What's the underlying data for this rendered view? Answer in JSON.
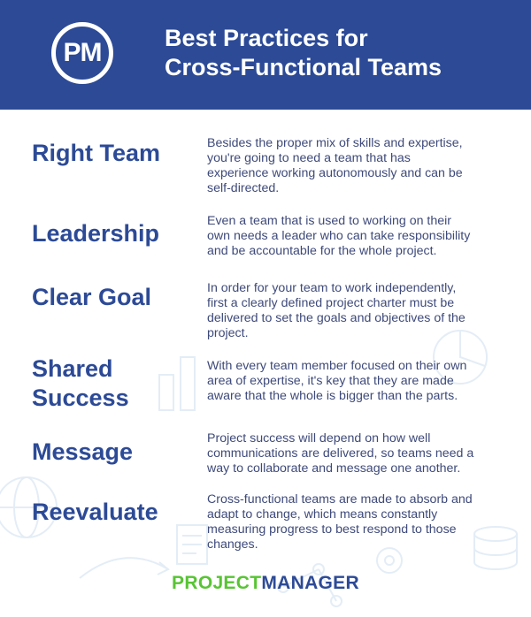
{
  "header": {
    "logo_text": "PM",
    "title_line1": "Best Practices for",
    "title_line2": "Cross-Functional Teams"
  },
  "practices": [
    {
      "heading": [
        "Right Team"
      ],
      "description": [
        "Besides the proper mix of skills and expertise,",
        "you're going to need a team that has",
        "experience working autonomously and can be",
        "self-directed."
      ]
    },
    {
      "heading": [
        "Leadership"
      ],
      "description": [
        "Even a team that is used to working on their",
        "own needs a leader who can take responsibility",
        "and be accountable for the whole project."
      ]
    },
    {
      "heading": [
        "Clear Goal"
      ],
      "description": [
        "In order for your team to work independently,",
        "first a clearly defined project charter must be",
        "delivered to set the goals and objectives of the",
        "project."
      ]
    },
    {
      "heading": [
        "Shared",
        "Success"
      ],
      "description": [
        "With every team member focused on their own",
        "area of expertise, it's key that they are made",
        "aware that the whole is bigger than the parts."
      ]
    },
    {
      "heading": [
        "Message"
      ],
      "description": [
        "Project success will depend on how well",
        "communications are delivered, so teams need a",
        "way to collaborate and message one another."
      ]
    },
    {
      "heading": [
        "Reevaluate"
      ],
      "description": [
        "Cross-functional teams are made to absorb and",
        "adapt to change, which means constantly",
        "measuring progress to best respond to those",
        "changes."
      ]
    }
  ],
  "brand": {
    "part1": "PROJECT",
    "part2": "MANAGER"
  },
  "colors": {
    "header_bg": "#2c4a96",
    "heading": "#2c4a96",
    "text": "#3e4a7a",
    "brand_green": "#58c434",
    "deco": "#e4edf6"
  },
  "decoration_icons": [
    "pie-chart-icon",
    "bar-chart-icon",
    "globe-icon",
    "database-icon",
    "document-icon",
    "arrow-icon"
  ]
}
